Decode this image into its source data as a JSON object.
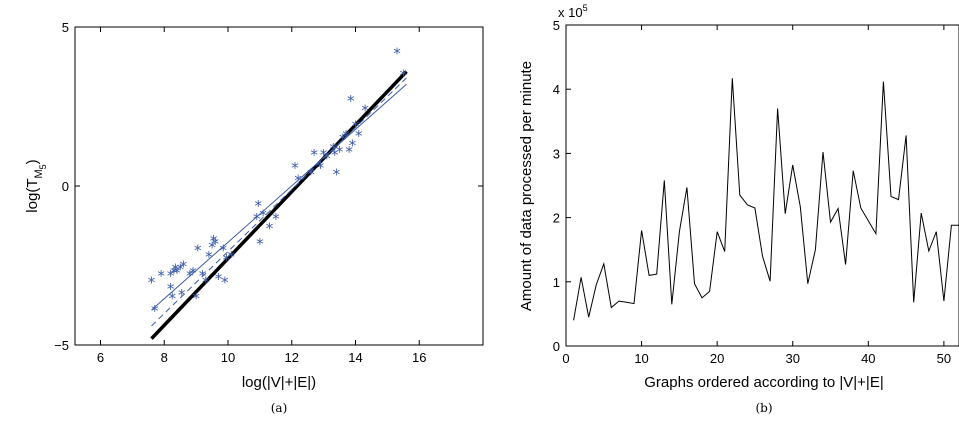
{
  "chart_data": [
    {
      "type": "scatter",
      "panel_label": "(a)",
      "xlabel": "log(|V|+|E|)",
      "ylabel_main": "log(T",
      "ylabel_sub": "M",
      "ylabel_subsub": "5",
      "ylabel_close": ")",
      "xlim": [
        5.2,
        18
      ],
      "ylim": [
        -5,
        5
      ],
      "xticks": [
        6,
        8,
        10,
        12,
        14,
        16
      ],
      "yticks": [
        -5,
        0,
        5
      ],
      "ytick_labels": [
        "−5",
        "0",
        "5"
      ],
      "marker": "*",
      "marker_color": "#3a5aa8",
      "points": [
        [
          7.6,
          -3.0
        ],
        [
          7.7,
          -3.9
        ],
        [
          7.9,
          -2.8
        ],
        [
          8.2,
          -3.2
        ],
        [
          8.2,
          -2.8
        ],
        [
          8.25,
          -3.5
        ],
        [
          8.3,
          -2.7
        ],
        [
          8.35,
          -2.6
        ],
        [
          8.4,
          -2.7
        ],
        [
          8.5,
          -2.6
        ],
        [
          8.55,
          -3.4
        ],
        [
          8.6,
          -2.5
        ],
        [
          8.8,
          -2.8
        ],
        [
          8.9,
          -2.7
        ],
        [
          9.0,
          -3.5
        ],
        [
          9.05,
          -2.0
        ],
        [
          9.2,
          -2.8
        ],
        [
          9.3,
          -3.0
        ],
        [
          9.4,
          -2.2
        ],
        [
          9.5,
          -1.9
        ],
        [
          9.55,
          -1.7
        ],
        [
          9.6,
          -1.8
        ],
        [
          9.7,
          -2.9
        ],
        [
          9.85,
          -2.0
        ],
        [
          9.9,
          -3.0
        ],
        [
          9.95,
          -2.3
        ],
        [
          10.1,
          -2.2
        ],
        [
          10.9,
          -1.0
        ],
        [
          10.95,
          -0.6
        ],
        [
          11.0,
          -1.8
        ],
        [
          11.1,
          -0.9
        ],
        [
          11.3,
          -1.3
        ],
        [
          11.5,
          -1.0
        ],
        [
          12.1,
          0.6
        ],
        [
          12.2,
          0.2
        ],
        [
          12.6,
          0.4
        ],
        [
          12.7,
          1.0
        ],
        [
          12.9,
          0.6
        ],
        [
          13.0,
          1.0
        ],
        [
          13.1,
          0.9
        ],
        [
          13.3,
          1.2
        ],
        [
          13.35,
          1.0
        ],
        [
          13.4,
          0.4
        ],
        [
          13.5,
          1.1
        ],
        [
          13.6,
          1.5
        ],
        [
          13.7,
          1.6
        ],
        [
          13.8,
          1.1
        ],
        [
          13.85,
          2.7
        ],
        [
          13.9,
          1.3
        ],
        [
          14.0,
          1.9
        ],
        [
          14.1,
          1.6
        ],
        [
          14.3,
          2.4
        ],
        [
          15.3,
          4.2
        ],
        [
          15.5,
          3.5
        ]
      ],
      "fit_lines": [
        {
          "name": "",
          "style": "solid-thick",
          "color": "#000000",
          "x": [
            7.6,
            15.6
          ],
          "y": [
            -4.8,
            3.6
          ]
        },
        {
          "name": "",
          "style": "solid-thin",
          "color": "#3a5aa8",
          "x": [
            7.6,
            15.6
          ],
          "y": [
            -3.9,
            3.2
          ]
        },
        {
          "name": "",
          "style": "dashed-thin",
          "color": "#3a5aa8",
          "x": [
            7.6,
            15.6
          ],
          "y": [
            -4.4,
            3.4
          ]
        }
      ]
    },
    {
      "type": "line",
      "panel_label": "(b)",
      "xlabel": "Graphs ordered according to |V|+|E|",
      "ylabel": "Amount of data processed per minute",
      "exponent_label": "x 10",
      "exponent_power": "5",
      "xlim": [
        0,
        52
      ],
      "ylim": [
        0,
        5
      ],
      "xticks": [
        0,
        10,
        20,
        30,
        40,
        50
      ],
      "yticks": [
        0,
        1,
        2,
        3,
        4,
        5
      ],
      "line_color": "#000000",
      "x": [
        1,
        2,
        3,
        4,
        5,
        6,
        7,
        8,
        9,
        10,
        11,
        12,
        13,
        14,
        15,
        16,
        17,
        18,
        19,
        20,
        21,
        22,
        23,
        24,
        25,
        26,
        27,
        28,
        29,
        30,
        31,
        32,
        33,
        34,
        35,
        36,
        37,
        38,
        39,
        40,
        41,
        42,
        43,
        44,
        45,
        46,
        47,
        48,
        49,
        50,
        51,
        52
      ],
      "values": [
        0.4,
        1.07,
        0.45,
        0.95,
        1.28,
        0.6,
        0.7,
        0.68,
        0.66,
        1.8,
        1.1,
        1.12,
        2.58,
        0.65,
        1.78,
        2.47,
        0.97,
        0.75,
        0.85,
        1.78,
        1.47,
        4.17,
        2.35,
        2.2,
        2.15,
        1.4,
        1.01,
        3.7,
        2.06,
        2.82,
        2.17,
        0.97,
        1.5,
        3.02,
        1.93,
        2.14,
        1.27,
        2.73,
        2.15,
        1.95,
        1.75,
        4.12,
        2.33,
        2.28,
        3.28,
        0.68,
        2.07,
        1.48,
        1.78,
        0.7,
        1.88,
        1.88
      ]
    }
  ]
}
